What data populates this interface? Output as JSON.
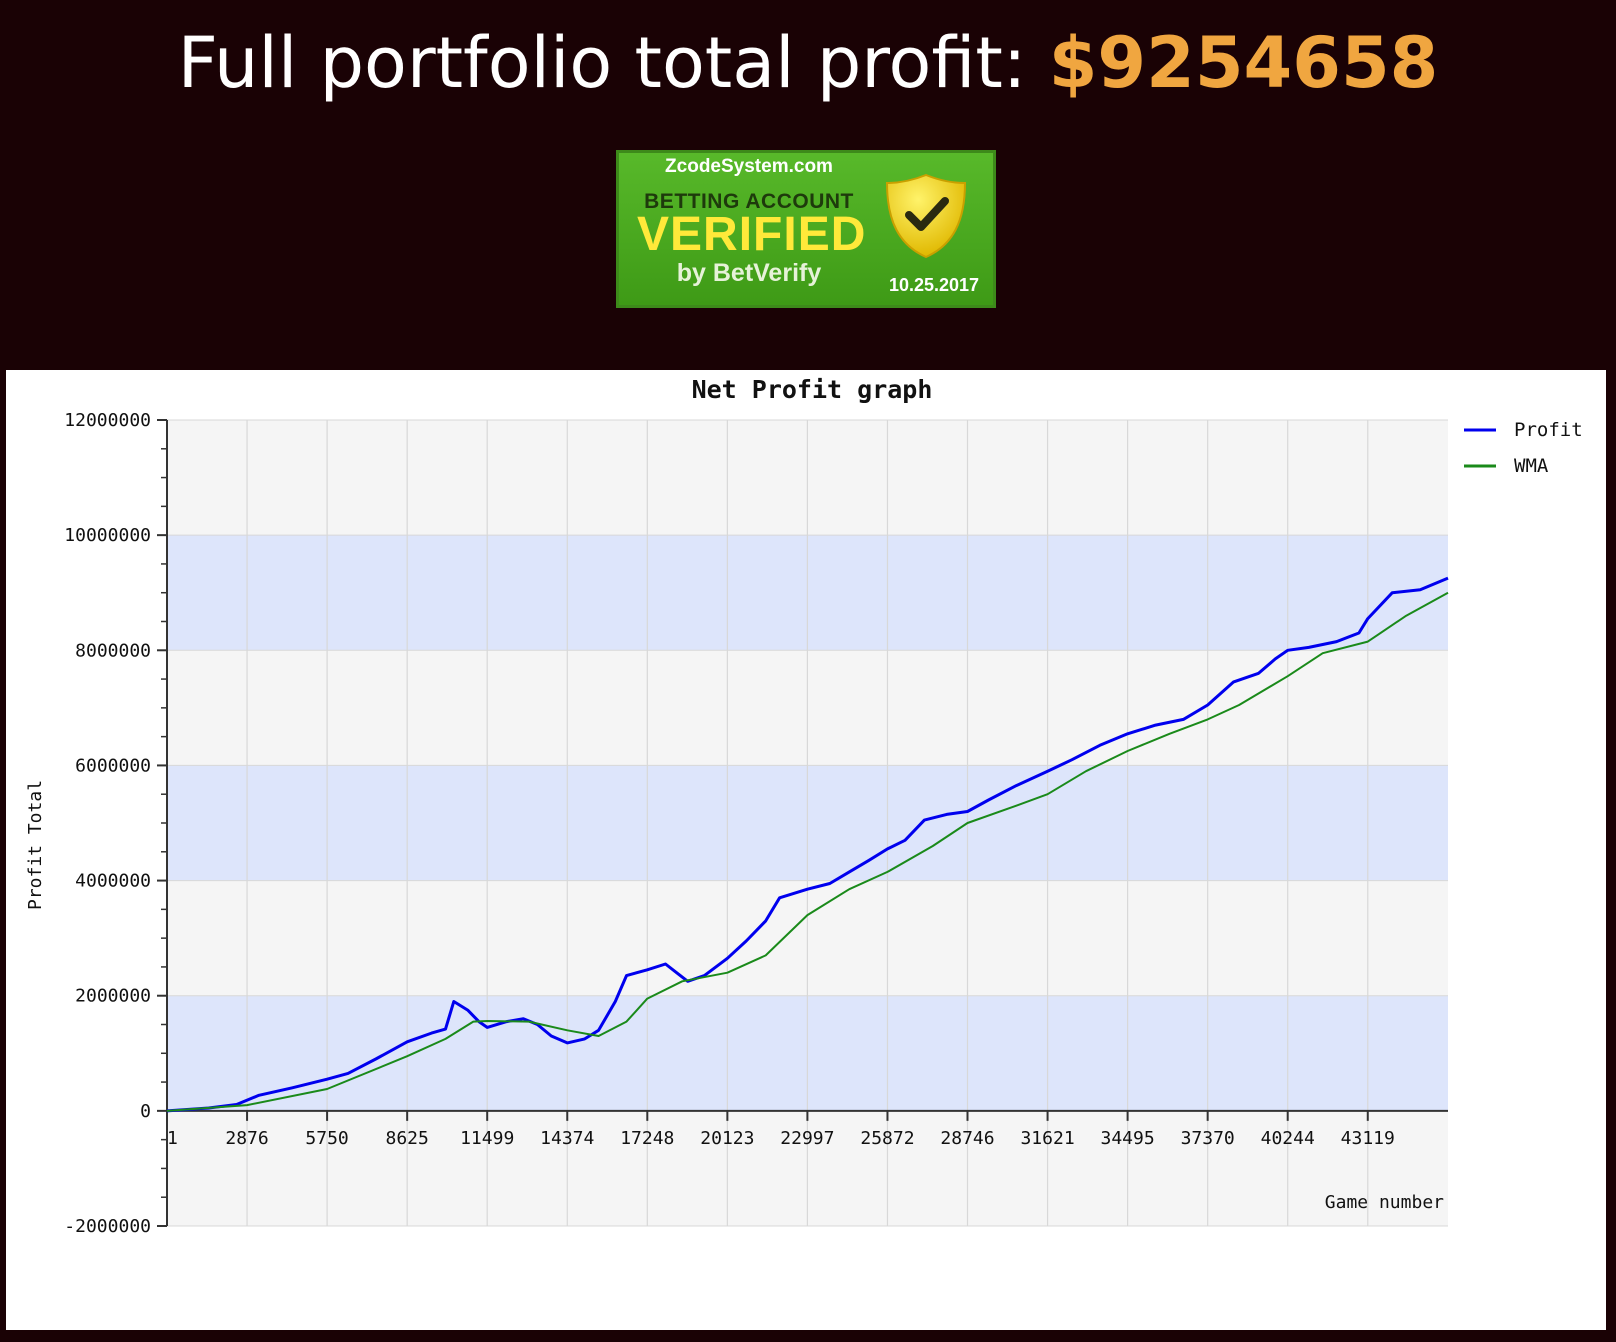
{
  "header": {
    "headline_label": "Full portfolio total profit: ",
    "headline_amount": "$9254658"
  },
  "badge": {
    "site": "ZcodeSystem.com",
    "account_label": "BETTING ACCOUNT",
    "verified_label": "VERIFIED",
    "by_label": "by BetVerify",
    "date": "10.25.2017",
    "colors": {
      "background": "#4aaa1f",
      "verified_text": "#ffe93a",
      "shield": "#f2d400"
    }
  },
  "colors": {
    "page_background": "#1a0205",
    "headline_text": "#ffffff",
    "headline_amount": "#f0a640",
    "band_light": "#dde5fb",
    "band_alt": "#f5f5f5"
  },
  "chart_data": {
    "type": "line",
    "title": "Net Profit graph",
    "xlabel": "Game number",
    "ylabel": "Profit Total",
    "xlim": [
      1,
      46000
    ],
    "ylim": [
      -2000000,
      12000000
    ],
    "x_ticks": [
      "1",
      "2876",
      "5750",
      "8625",
      "11499",
      "14374",
      "17248",
      "20123",
      "22997",
      "25872",
      "28746",
      "31621",
      "34495",
      "37370",
      "40244",
      "43119"
    ],
    "y_ticks": [
      "12000000",
      "10000000",
      "8000000",
      "6000000",
      "4000000",
      "2000000",
      "0",
      "-2000000"
    ],
    "grid": true,
    "legend": "top-right",
    "series": [
      {
        "name": "Profit",
        "color": "#0000ee",
        "points": [
          [
            1,
            0
          ],
          [
            1500,
            50000
          ],
          [
            2500,
            110000
          ],
          [
            3300,
            270000
          ],
          [
            4500,
            400000
          ],
          [
            5750,
            550000
          ],
          [
            6500,
            650000
          ],
          [
            7500,
            900000
          ],
          [
            8625,
            1200000
          ],
          [
            9500,
            1350000
          ],
          [
            10000,
            1420000
          ],
          [
            10300,
            1900000
          ],
          [
            10800,
            1750000
          ],
          [
            11200,
            1550000
          ],
          [
            11499,
            1450000
          ],
          [
            12200,
            1550000
          ],
          [
            12800,
            1600000
          ],
          [
            13300,
            1500000
          ],
          [
            13800,
            1300000
          ],
          [
            14374,
            1180000
          ],
          [
            15000,
            1250000
          ],
          [
            15500,
            1400000
          ],
          [
            16100,
            1900000
          ],
          [
            16500,
            2350000
          ],
          [
            17248,
            2450000
          ],
          [
            17900,
            2550000
          ],
          [
            18300,
            2400000
          ],
          [
            18700,
            2250000
          ],
          [
            19300,
            2350000
          ],
          [
            20123,
            2650000
          ],
          [
            20800,
            2950000
          ],
          [
            21500,
            3300000
          ],
          [
            22000,
            3700000
          ],
          [
            22997,
            3850000
          ],
          [
            23800,
            3950000
          ],
          [
            24500,
            4150000
          ],
          [
            25200,
            4350000
          ],
          [
            25872,
            4550000
          ],
          [
            26500,
            4700000
          ],
          [
            27200,
            5050000
          ],
          [
            28000,
            5150000
          ],
          [
            28746,
            5200000
          ],
          [
            29500,
            5400000
          ],
          [
            30500,
            5650000
          ],
          [
            31621,
            5900000
          ],
          [
            32500,
            6100000
          ],
          [
            33500,
            6350000
          ],
          [
            34495,
            6550000
          ],
          [
            35500,
            6700000
          ],
          [
            36500,
            6800000
          ],
          [
            37370,
            7050000
          ],
          [
            38300,
            7450000
          ],
          [
            39200,
            7600000
          ],
          [
            39800,
            7850000
          ],
          [
            40244,
            8000000
          ],
          [
            41000,
            8050000
          ],
          [
            42000,
            8150000
          ],
          [
            42800,
            8300000
          ],
          [
            43119,
            8550000
          ],
          [
            44000,
            9000000
          ],
          [
            45000,
            9050000
          ],
          [
            46000,
            9254658
          ]
        ]
      },
      {
        "name": "WMA",
        "color": "#1a8a1a",
        "points": [
          [
            1,
            0
          ],
          [
            2876,
            100000
          ],
          [
            5750,
            380000
          ],
          [
            8625,
            950000
          ],
          [
            10000,
            1250000
          ],
          [
            11000,
            1550000
          ],
          [
            11499,
            1560000
          ],
          [
            13000,
            1550000
          ],
          [
            14374,
            1400000
          ],
          [
            15500,
            1300000
          ],
          [
            16500,
            1550000
          ],
          [
            17248,
            1950000
          ],
          [
            18500,
            2250000
          ],
          [
            20123,
            2400000
          ],
          [
            21500,
            2700000
          ],
          [
            22997,
            3400000
          ],
          [
            24500,
            3850000
          ],
          [
            25872,
            4150000
          ],
          [
            27500,
            4600000
          ],
          [
            28746,
            5000000
          ],
          [
            30500,
            5300000
          ],
          [
            31621,
            5500000
          ],
          [
            33000,
            5900000
          ],
          [
            34495,
            6250000
          ],
          [
            36000,
            6550000
          ],
          [
            37370,
            6800000
          ],
          [
            38500,
            7050000
          ],
          [
            40244,
            7550000
          ],
          [
            41500,
            7950000
          ],
          [
            43119,
            8150000
          ],
          [
            44500,
            8600000
          ],
          [
            46000,
            9000000
          ]
        ]
      }
    ]
  }
}
